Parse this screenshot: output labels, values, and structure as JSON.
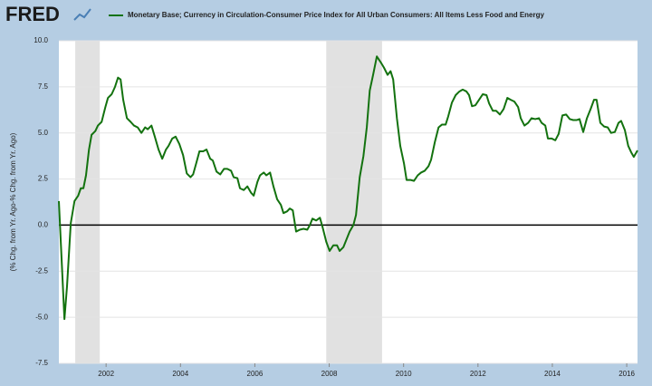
{
  "logo": "FRED",
  "chart_data": {
    "type": "line",
    "y_label": "(% Chg. from Yr. Ago-% Chg. from Yr. Ago)",
    "xlim": [
      2000.73,
      2016.29
    ],
    "xticks": [
      2002,
      2004,
      2006,
      2008,
      2010,
      2012,
      2014,
      2016
    ],
    "ylim": [
      -7.5,
      10
    ],
    "yticks": [
      {
        "value": -7.5,
        "label": "-7.5"
      },
      {
        "value": -5,
        "label": "-5.0"
      },
      {
        "value": -2.5,
        "label": "-2.5"
      },
      {
        "value": 0,
        "label": "0.0"
      },
      {
        "value": 2.5,
        "label": "2.5"
      },
      {
        "value": 5,
        "label": "5.0"
      },
      {
        "value": 7.5,
        "label": "7.5"
      },
      {
        "value": 10,
        "label": "10.0"
      }
    ],
    "grid": true,
    "zero_line": true,
    "recessions": [
      [
        2001.17,
        2001.83
      ],
      [
        2007.92,
        2009.42
      ]
    ],
    "x": [
      2000.73,
      2000.88,
      2000.95,
      2001.05,
      2001.15,
      2001.25,
      2001.32,
      2001.39,
      2001.46,
      2001.54,
      2001.61,
      2001.71,
      2001.78,
      2001.88,
      2001.98,
      2002.05,
      2002.15,
      2002.24,
      2002.32,
      2002.39,
      2002.46,
      2002.56,
      2002.66,
      2002.75,
      2002.85,
      2002.95,
      2003.05,
      2003.12,
      2003.22,
      2003.31,
      2003.41,
      2003.51,
      2003.61,
      2003.68,
      2003.78,
      2003.87,
      2003.97,
      2004.07,
      2004.17,
      2004.27,
      2004.34,
      2004.43,
      2004.51,
      2004.61,
      2004.7,
      2004.8,
      2004.87,
      2004.97,
      2005.07,
      2005.17,
      2005.26,
      2005.36,
      2005.43,
      2005.53,
      2005.6,
      2005.7,
      2005.8,
      2005.9,
      2005.97,
      2006.07,
      2006.14,
      2006.24,
      2006.31,
      2006.41,
      2006.5,
      2006.6,
      2006.7,
      2006.77,
      2006.87,
      2006.94,
      2007.02,
      2007.11,
      2007.21,
      2007.31,
      2007.41,
      2007.48,
      2007.55,
      2007.65,
      2007.75,
      2007.82,
      2007.92,
      2008.01,
      2008.11,
      2008.21,
      2008.28,
      2008.38,
      2008.48,
      2008.55,
      2008.65,
      2008.72,
      2008.82,
      2008.92,
      2009.01,
      2009.09,
      2009.18,
      2009.28,
      2009.38,
      2009.47,
      2009.57,
      2009.65,
      2009.72,
      2009.82,
      2009.91,
      2010.01,
      2010.08,
      2010.18,
      2010.28,
      2010.38,
      2010.47,
      2010.57,
      2010.67,
      2010.74,
      2010.84,
      2010.94,
      2011.03,
      2011.13,
      2011.2,
      2011.3,
      2011.4,
      2011.5,
      2011.59,
      2011.69,
      2011.76,
      2011.84,
      2011.93,
      2012.03,
      2012.13,
      2012.23,
      2012.3,
      2012.4,
      2012.49,
      2012.59,
      2012.69,
      2012.79,
      2012.88,
      2012.98,
      2013.08,
      2013.15,
      2013.25,
      2013.35,
      2013.44,
      2013.54,
      2013.64,
      2013.71,
      2013.81,
      2013.88,
      2013.98,
      2014.08,
      2014.17,
      2014.27,
      2014.37,
      2014.47,
      2014.56,
      2014.66,
      2014.73,
      2014.83,
      2014.93,
      2015.03,
      2015.12,
      2015.19,
      2015.29,
      2015.39,
      2015.49,
      2015.58,
      2015.68,
      2015.78,
      2015.85,
      2015.95,
      2016.04,
      2016.12,
      2016.19,
      2016.29
    ],
    "series": [
      {
        "name": "Monetary Base; Currency in Circulation-Consumer Price Index for All Urban Consumers: All Items Less Food and Energy",
        "color": "#13720f",
        "values": [
          1.3,
          -5.1,
          -3.3,
          0.1,
          1.3,
          1.6,
          2.0,
          2.0,
          2.7,
          4.1,
          4.9,
          5.1,
          5.4,
          5.6,
          6.4,
          6.9,
          7.1,
          7.5,
          8.0,
          7.9,
          6.8,
          5.8,
          5.6,
          5.4,
          5.3,
          5.0,
          5.3,
          5.2,
          5.4,
          4.8,
          4.1,
          3.6,
          4.1,
          4.3,
          4.7,
          4.8,
          4.4,
          3.8,
          2.8,
          2.6,
          2.75,
          3.4,
          4.0,
          4.0,
          4.1,
          3.6,
          3.5,
          2.9,
          2.75,
          3.05,
          3.05,
          2.95,
          2.6,
          2.55,
          2.0,
          1.9,
          2.1,
          1.75,
          1.6,
          2.35,
          2.7,
          2.85,
          2.7,
          2.85,
          2.1,
          1.4,
          1.1,
          0.65,
          0.75,
          0.9,
          0.8,
          -0.35,
          -0.25,
          -0.2,
          -0.25,
          0.0,
          0.35,
          0.25,
          0.4,
          -0.1,
          -0.9,
          -1.4,
          -1.1,
          -1.1,
          -1.4,
          -1.2,
          -0.7,
          -0.35,
          0.0,
          0.55,
          2.6,
          3.75,
          5.3,
          7.3,
          8.15,
          9.15,
          8.85,
          8.55,
          8.15,
          8.35,
          7.9,
          5.8,
          4.3,
          3.35,
          2.45,
          2.45,
          2.4,
          2.7,
          2.85,
          2.95,
          3.2,
          3.55,
          4.5,
          5.3,
          5.45,
          5.45,
          5.9,
          6.65,
          7.05,
          7.25,
          7.35,
          7.25,
          7.05,
          6.45,
          6.5,
          6.8,
          7.1,
          7.05,
          6.6,
          6.2,
          6.2,
          6.0,
          6.3,
          6.9,
          6.8,
          6.7,
          6.4,
          5.8,
          5.4,
          5.55,
          5.8,
          5.75,
          5.8,
          5.55,
          5.4,
          4.7,
          4.7,
          4.6,
          4.95,
          5.95,
          6.0,
          5.75,
          5.7,
          5.7,
          5.75,
          5.05,
          5.8,
          6.3,
          6.8,
          6.8,
          5.55,
          5.35,
          5.3,
          5.0,
          5.05,
          5.55,
          5.65,
          5.15,
          4.3,
          3.95,
          3.7,
          4.05
        ]
      }
    ]
  }
}
